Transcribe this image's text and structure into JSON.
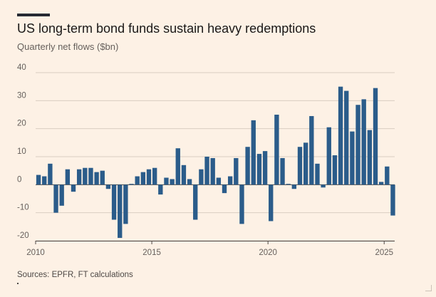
{
  "header": {
    "title": "US long-term bond funds sustain heavy redemptions",
    "subtitle": "Quarterly net flows ($bn)"
  },
  "footer": {
    "source": "Sources: EPFR, FT calculations"
  },
  "colors": {
    "bar": "#2b5c8a",
    "grid": "#d9cdc1",
    "zero_line": "#4d4845",
    "background": "#fdf1e5"
  },
  "chart_data": {
    "type": "bar",
    "title": "US long-term bond funds sustain heavy redemptions",
    "subtitle": "Quarterly net flows ($bn)",
    "xlabel": "",
    "ylabel": "",
    "ylim": [
      -20,
      40
    ],
    "yticks": [
      40,
      30,
      20,
      10,
      0,
      -10,
      -20
    ],
    "ytick_labels": [
      "40",
      "30",
      "20",
      "10",
      "0",
      "-10",
      "-20"
    ],
    "xlim": [
      2010,
      2025.33
    ],
    "xticks": [
      2010,
      2015,
      2020,
      2025
    ],
    "xtick_labels": [
      "2010",
      "2015",
      "2020",
      "2025"
    ],
    "grid": true,
    "series": [
      {
        "name": "Quarterly net flows",
        "start_year": 2010,
        "periods_per_year": 4,
        "values": [
          3.5,
          3.0,
          7.5,
          -10.0,
          -7.5,
          5.5,
          -2.5,
          5.5,
          6.0,
          6.0,
          4.5,
          5.0,
          -1.5,
          -12.5,
          -19.0,
          -14.0,
          0.3,
          3.0,
          4.5,
          5.5,
          6.0,
          -3.5,
          2.5,
          2.0,
          13.0,
          7.0,
          2.0,
          -12.5,
          5.5,
          10.0,
          9.5,
          2.5,
          -3.0,
          3.0,
          9.5,
          -14.0,
          13.5,
          23.0,
          11.0,
          12.0,
          -13.0,
          25.0,
          9.5,
          0.3,
          -1.5,
          13.5,
          15.0,
          24.5,
          7.5,
          -1.0,
          20.5,
          10.5,
          35.0,
          33.5,
          19.0,
          28.5,
          30.5,
          19.5,
          34.5,
          1.0,
          6.5,
          -11.0
        ]
      }
    ]
  }
}
